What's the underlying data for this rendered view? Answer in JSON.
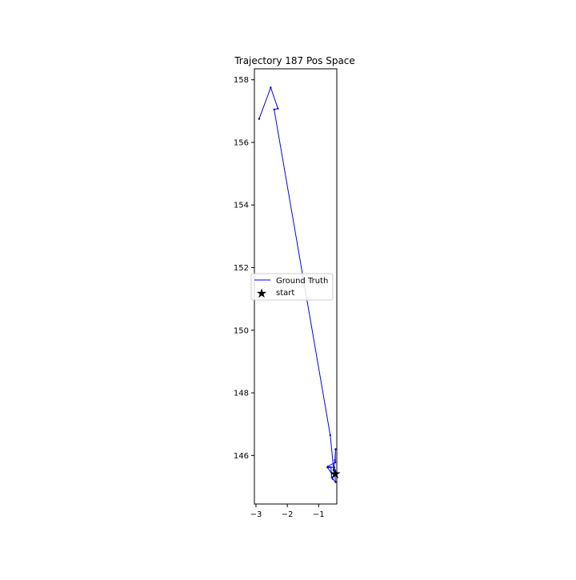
{
  "chart_data": {
    "type": "line",
    "title": "Trajectory 187 Pos Space",
    "xlabel": "",
    "ylabel": "",
    "xlim": [
      -3.05,
      -0.42
    ],
    "ylim": [
      144.45,
      158.35
    ],
    "xticks": [
      -3,
      -2,
      -1
    ],
    "xtick_labels": [
      "−3",
      "−2",
      "−1"
    ],
    "yticks": [
      146,
      148,
      150,
      152,
      154,
      156,
      158
    ],
    "ytick_labels": [
      "146",
      "148",
      "150",
      "152",
      "154",
      "156",
      "158"
    ],
    "grid": false,
    "legend_position": "center-left",
    "series": [
      {
        "name": "Ground Truth",
        "color": "#0000ff",
        "marker": "dot",
        "x": [
          -0.47,
          -0.52,
          -0.45,
          -0.58,
          -0.72,
          -0.5,
          -0.46,
          -0.55,
          -0.58,
          -0.61,
          -0.7,
          -0.47,
          -0.46,
          -0.48,
          -0.52,
          -0.63,
          -2.42,
          -2.3,
          -2.53,
          -2.9
        ],
        "y": [
          145.42,
          145.52,
          145.38,
          145.42,
          145.62,
          145.62,
          145.15,
          145.25,
          145.3,
          145.62,
          145.65,
          145.78,
          146.2,
          145.85,
          145.55,
          146.65,
          157.05,
          157.08,
          157.75,
          156.75
        ]
      },
      {
        "name": "start",
        "type": "scatter",
        "color": "#000000",
        "marker": "star",
        "x": [
          -0.47
        ],
        "y": [
          145.42
        ]
      }
    ]
  }
}
